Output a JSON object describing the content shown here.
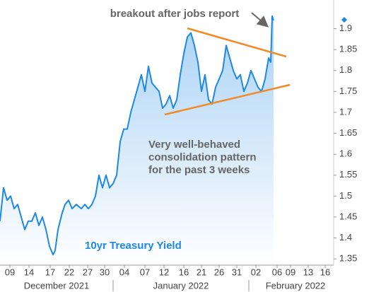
{
  "chart_data": {
    "type": "line",
    "annotations": {
      "breakout": "breakout after jobs report",
      "pattern": [
        "Very well-behaved",
        "consolidation pattern",
        "for the past 3 weeks"
      ],
      "label": "10yr Treasury Yield"
    },
    "month_labels": [
      "December 2021",
      "January 2022",
      "February 2022"
    ],
    "xlim": [
      0,
      470
    ],
    "ylim": [
      1.335,
      1.96
    ],
    "yticks": [
      1.35,
      1.4,
      1.45,
      1.5,
      1.55,
      1.6,
      1.65,
      1.7,
      1.75,
      1.8,
      1.85,
      1.9
    ],
    "xticks": [
      {
        "value": 14,
        "label": "09"
      },
      {
        "value": 41,
        "label": "14"
      },
      {
        "value": 71,
        "label": "17"
      },
      {
        "value": 98,
        "label": "22"
      },
      {
        "value": 124,
        "label": "27"
      },
      {
        "value": 148,
        "label": "30"
      },
      {
        "value": 176,
        "label": "04"
      },
      {
        "value": 205,
        "label": "07"
      },
      {
        "value": 232,
        "label": "12"
      },
      {
        "value": 260,
        "label": "16"
      },
      {
        "value": 285,
        "label": "21"
      },
      {
        "value": 310,
        "label": "26"
      },
      {
        "value": 335,
        "label": "31"
      },
      {
        "value": 362,
        "label": "02"
      },
      {
        "value": 392,
        "label": "06"
      },
      {
        "value": 411,
        "label": "09"
      },
      {
        "value": 436,
        "label": "13"
      },
      {
        "value": 460,
        "label": "16"
      }
    ],
    "series": [
      {
        "name": "10yr Treasury Yield",
        "color": "#1e88e5",
        "x": [
          0,
          5,
          10,
          15,
          20,
          25,
          30,
          35,
          40,
          45,
          50,
          55,
          60,
          65,
          70,
          75,
          78,
          82,
          88,
          92,
          97,
          102,
          108,
          115,
          120,
          125,
          130,
          135,
          140,
          145,
          150,
          155,
          160,
          165,
          170,
          175,
          180,
          185,
          190,
          195,
          200,
          205,
          210,
          215,
          220,
          225,
          230,
          235,
          240,
          245,
          250,
          255,
          260,
          265,
          270,
          275,
          280,
          285,
          290,
          295,
          300,
          305,
          310,
          315,
          320,
          325,
          330,
          335,
          340,
          345,
          350,
          355,
          360,
          365,
          370,
          375,
          380,
          383,
          385,
          387
        ],
        "values": [
          1.44,
          1.52,
          1.49,
          1.5,
          1.47,
          1.48,
          1.45,
          1.42,
          1.44,
          1.44,
          1.46,
          1.43,
          1.45,
          1.42,
          1.38,
          1.36,
          1.37,
          1.42,
          1.46,
          1.48,
          1.49,
          1.47,
          1.48,
          1.47,
          1.48,
          1.47,
          1.48,
          1.5,
          1.55,
          1.52,
          1.55,
          1.52,
          1.53,
          1.55,
          1.63,
          1.66,
          1.66,
          1.7,
          1.73,
          1.76,
          1.79,
          1.75,
          1.81,
          1.77,
          1.76,
          1.75,
          1.71,
          1.72,
          1.74,
          1.71,
          1.73,
          1.79,
          1.84,
          1.88,
          1.89,
          1.86,
          1.82,
          1.75,
          1.79,
          1.73,
          1.72,
          1.76,
          1.78,
          1.8,
          1.86,
          1.83,
          1.8,
          1.78,
          1.79,
          1.75,
          1.77,
          1.8,
          1.78,
          1.76,
          1.75,
          1.78,
          1.83,
          1.82,
          1.93,
          1.92
        ]
      }
    ]
  }
}
